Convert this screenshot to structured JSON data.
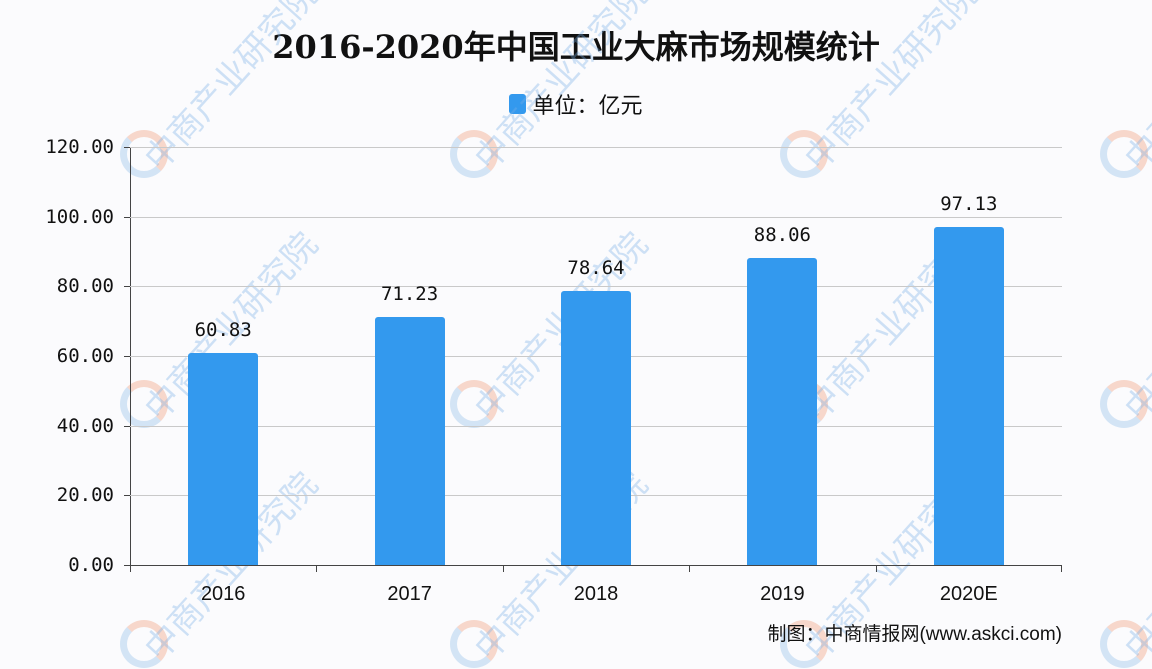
{
  "chart_data": {
    "type": "bar",
    "title": "2016-2020年中国工业大麻市场规模统计",
    "legend": [
      {
        "label": "单位：亿元",
        "color": "#3399ee"
      }
    ],
    "legend_position": "top",
    "categories": [
      "2016",
      "2017",
      "2018",
      "2019",
      "2020E"
    ],
    "series": [
      {
        "name": "单位：亿元",
        "values": [
          60.83,
          71.23,
          78.64,
          88.06,
          97.13
        ],
        "color": "#3399ee"
      }
    ],
    "value_labels": [
      "60.83",
      "71.23",
      "78.64",
      "88.06",
      "97.13"
    ],
    "xlabel": "",
    "ylabel": "",
    "ylim": [
      0,
      120
    ],
    "yticks": [
      "0.00",
      "20.00",
      "40.00",
      "60.00",
      "80.00",
      "100.00",
      "120.00"
    ],
    "grid": true
  },
  "source": "制图：中商情报网(www.askci.com)",
  "watermark": "中商产业研究院"
}
